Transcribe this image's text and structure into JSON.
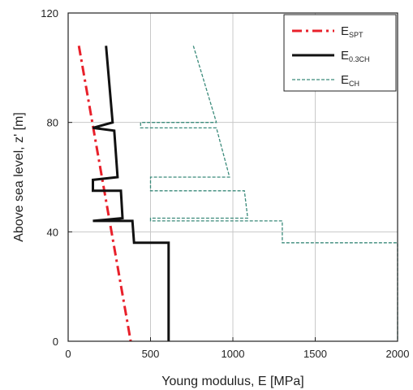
{
  "chart_data": {
    "type": "line",
    "xlabel": "Young modulus, E [MPa]",
    "ylabel": "Above sea level, z' [m]",
    "xlim": [
      0,
      2000
    ],
    "ylim": [
      0,
      120
    ],
    "xticks": [
      0,
      500,
      1000,
      1500,
      2000
    ],
    "yticks": [
      0,
      40,
      80,
      120
    ],
    "xtick_labels": [
      "0",
      "500",
      "1000",
      "1500",
      "2000"
    ],
    "ytick_labels": [
      "0",
      "40",
      "80",
      "120"
    ],
    "grid": true,
    "legend_position": "top-right",
    "series": [
      {
        "name_main": "E",
        "name_sub": "SPT",
        "style": "dash-dot",
        "color": "#e8202a",
        "points": [
          [
            65,
            108
          ],
          [
            380,
            0
          ]
        ]
      },
      {
        "name_main": "E",
        "name_sub": "0.3CH",
        "style": "solid",
        "color": "#111111",
        "points": [
          [
            230,
            108
          ],
          [
            270,
            80
          ],
          [
            150,
            78
          ],
          [
            280,
            77
          ],
          [
            300,
            60
          ],
          [
            150,
            59
          ],
          [
            150,
            55
          ],
          [
            320,
            55
          ],
          [
            330,
            45
          ],
          [
            150,
            44
          ],
          [
            390,
            44
          ],
          [
            400,
            36
          ],
          [
            610,
            36
          ],
          [
            610,
            0
          ]
        ]
      },
      {
        "name_main": "E",
        "name_sub": "CH",
        "style": "dashed",
        "color": "#3a8a7a",
        "points": [
          [
            760,
            108
          ],
          [
            900,
            80
          ],
          [
            440,
            80
          ],
          [
            440,
            78
          ],
          [
            900,
            78
          ],
          [
            980,
            60
          ],
          [
            500,
            60
          ],
          [
            500,
            55
          ],
          [
            1070,
            55
          ],
          [
            1090,
            45
          ],
          [
            500,
            45
          ],
          [
            500,
            44
          ],
          [
            1300,
            44
          ],
          [
            1300,
            36
          ],
          [
            2000,
            36
          ],
          [
            2000,
            0
          ]
        ]
      }
    ]
  }
}
